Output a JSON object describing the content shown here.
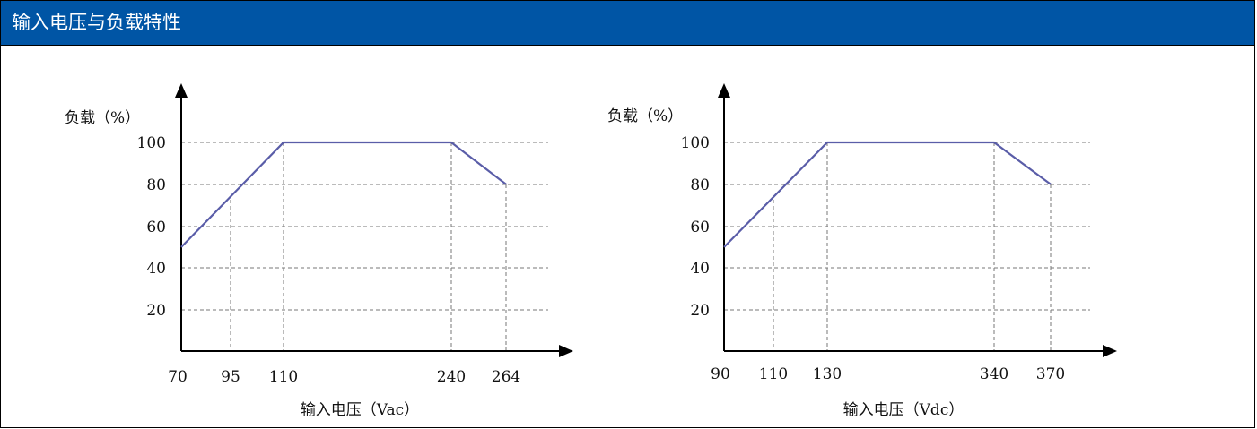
{
  "header": {
    "title": "输入电压与负载特性",
    "background": "#0055A5",
    "text_color": "#FFFFFF"
  },
  "colors": {
    "curve": "#5A5DA8",
    "grid": "#777777",
    "axis": "#000000"
  },
  "chart_data": [
    {
      "type": "line",
      "xlabel": "输入电压（Vac）",
      "ylabel": "负载（%）",
      "x": [
        70,
        110,
        240,
        264
      ],
      "series": [
        {
          "values": [
            50,
            100,
            100,
            80
          ]
        }
      ],
      "xticks": [
        "70",
        "95",
        "110",
        "240",
        "264"
      ],
      "yticks": [
        "100",
        "80",
        "60",
        "40",
        "20"
      ],
      "grid": true
    },
    {
      "type": "line",
      "xlabel": "输入电压（Vdc）",
      "ylabel": "负载（%）",
      "x": [
        90,
        130,
        340,
        370
      ],
      "series": [
        {
          "values": [
            50,
            100,
            100,
            80
          ]
        }
      ],
      "xticks": [
        "90",
        "110",
        "130",
        "340",
        "370"
      ],
      "yticks": [
        "100",
        "80",
        "60",
        "40",
        "20"
      ],
      "grid": true
    }
  ]
}
